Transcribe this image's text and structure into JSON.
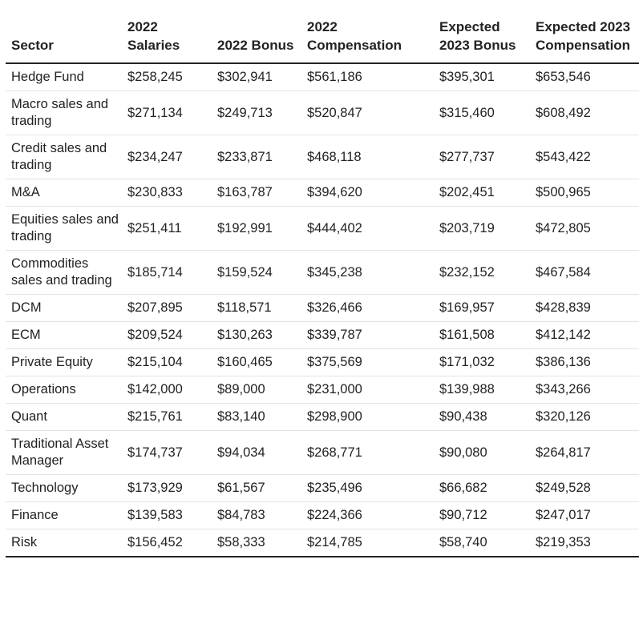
{
  "table": {
    "headers": [
      "Sector",
      "2022 Salaries",
      "2022 Bonus",
      "2022 Compensation",
      "Expected 2023 Bonus",
      "Expected 2023 Compensation"
    ],
    "rows": [
      [
        "Hedge Fund",
        "$258,245",
        "$302,941",
        "$561,186",
        "$395,301",
        "$653,546"
      ],
      [
        "Macro sales and trading",
        "$271,134",
        "$249,713",
        "$520,847",
        "$315,460",
        "$608,492"
      ],
      [
        "Credit sales and trading",
        "$234,247",
        "$233,871",
        "$468,118",
        "$277,737",
        "$543,422"
      ],
      [
        "M&A",
        "$230,833",
        "$163,787",
        "$394,620",
        "$202,451",
        "$500,965"
      ],
      [
        "Equities sales and trading",
        "$251,411",
        "$192,991",
        "$444,402",
        "$203,719",
        "$472,805"
      ],
      [
        "Commodities sales and trading",
        "$185,714",
        "$159,524",
        "$345,238",
        "$232,152",
        "$467,584"
      ],
      [
        "DCM",
        "$207,895",
        "$118,571",
        "$326,466",
        "$169,957",
        "$428,839"
      ],
      [
        "ECM",
        "$209,524",
        "$130,263",
        "$339,787",
        "$161,508",
        "$412,142"
      ],
      [
        "Private Equity",
        "$215,104",
        "$160,465",
        "$375,569",
        "$171,032",
        "$386,136"
      ],
      [
        "Operations",
        "$142,000",
        "$89,000",
        "$231,000",
        "$139,988",
        "$343,266"
      ],
      [
        "Quant",
        "$215,761",
        "$83,140",
        "$298,900",
        "$90,438",
        "$320,126"
      ],
      [
        "Traditional Asset Manager",
        "$174,737",
        "$94,034",
        "$268,771",
        "$90,080",
        "$264,817"
      ],
      [
        "Technology",
        "$173,929",
        "$61,567",
        "$235,496",
        "$66,682",
        "$249,528"
      ],
      [
        "Finance",
        "$139,583",
        "$84,783",
        "$224,366",
        "$90,712",
        "$247,017"
      ],
      [
        "Risk",
        "$156,452",
        "$58,333",
        "$214,785",
        "$58,740",
        "$219,353"
      ]
    ]
  },
  "colors": {
    "text": "#222222",
    "rule": "#222222",
    "row_divider": "#e3e3e3",
    "background": "#ffffff"
  }
}
